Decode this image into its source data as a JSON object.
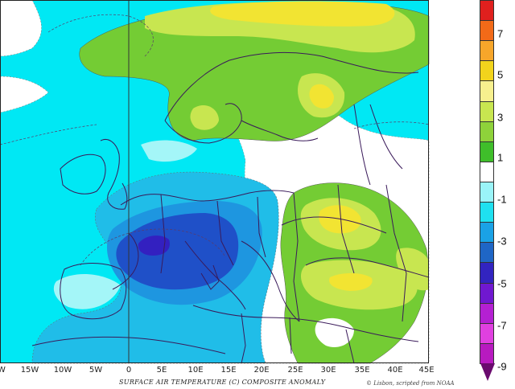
{
  "map": {
    "caption": "SURFACE AIR TEMPERATURE (C) COMPOSITE ANOMALY",
    "credit": "© Lisbon, scripted from NOAA",
    "x_axis_labels": [
      "W",
      "15W",
      "10W",
      "5W",
      "0",
      "5E",
      "10E",
      "15E",
      "20E",
      "25E",
      "30E",
      "35E",
      "40E",
      "45E"
    ]
  },
  "legend": {
    "tick_labels": [
      "7",
      "5",
      "3",
      "1",
      "-1",
      "-3",
      "-5",
      "-7",
      "-9"
    ],
    "colors": [
      "#e0201e",
      "#f26a18",
      "#f7a62a",
      "#f2d41c",
      "#f7f08e",
      "#c8e650",
      "#8ed23a",
      "#3fbe2a",
      "#ffffff",
      "#9af4f8",
      "#1fe1f0",
      "#1aa2e6",
      "#1f66c6",
      "#3224c0",
      "#7018d0",
      "#b420d2",
      "#e040e0",
      "#b81ac0"
    ],
    "arrow_color": "#6a0a6e"
  },
  "palette": {
    "cyan": "#00e8f4",
    "light_blue": "#20bde8",
    "mid_blue": "#1e96e0",
    "dark_blue": "#1f50c8",
    "indigo": "#3320c0",
    "light_green": "#c8e650",
    "green": "#74cc34",
    "yellow": "#f2e432",
    "neutral": "#ffffff",
    "boundary": "#3a1a5a"
  }
}
